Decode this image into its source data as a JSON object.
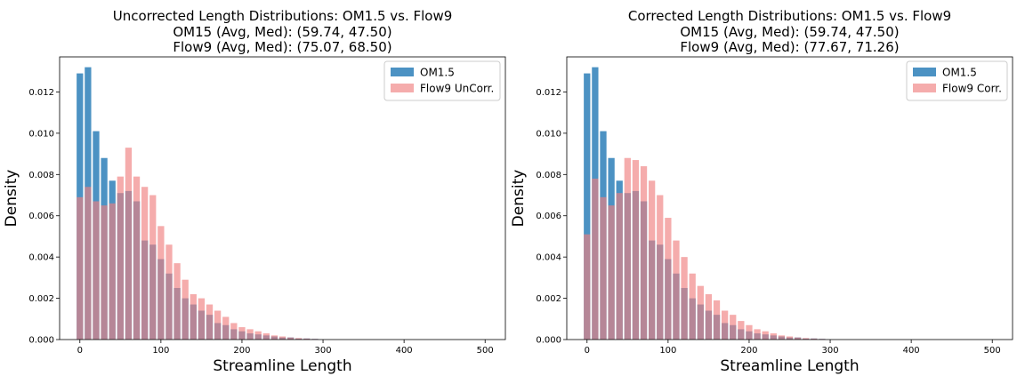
{
  "chart_data": [
    {
      "type": "bar",
      "title": "Uncorrected Length Distributions: OM1.5 vs. Flow9",
      "subtitle_lines": [
        "OM15 (Avg,  Med): (59.74,  47.50)",
        "Flow9 (Avg,  Med): (75.07,  68.50)"
      ],
      "xlabel": "Streamline Length",
      "ylabel": "Density",
      "xlim": [
        -25,
        525
      ],
      "ylim": [
        0,
        0.0137
      ],
      "xticks": [
        0,
        100,
        200,
        300,
        400,
        500
      ],
      "yticks": [
        0.0,
        0.002,
        0.004,
        0.006,
        0.008,
        0.01,
        0.012
      ],
      "ytick_labels": [
        "0.000",
        "0.002",
        "0.004",
        "0.006",
        "0.008",
        "0.010",
        "0.012"
      ],
      "legend_position": "top-right",
      "bin_width": 10,
      "x": [
        0,
        10,
        20,
        30,
        40,
        50,
        60,
        70,
        80,
        90,
        100,
        110,
        120,
        130,
        140,
        150,
        160,
        170,
        180,
        190,
        200,
        210,
        220,
        230,
        240,
        250,
        260,
        270,
        280,
        290
      ],
      "series": [
        {
          "name": "OM1.5",
          "color": "#1f77b4",
          "values": [
            0.0129,
            0.0132,
            0.0101,
            0.0088,
            0.0077,
            0.0071,
            0.0072,
            0.0067,
            0.0048,
            0.0046,
            0.0039,
            0.0032,
            0.0025,
            0.002,
            0.0017,
            0.0014,
            0.0012,
            0.0008,
            0.0007,
            0.0005,
            0.0004,
            0.0003,
            0.00025,
            0.0002,
            0.00015,
            0.0001,
            0.0001,
            5e-05,
            5e-05,
            3e-05
          ]
        },
        {
          "name": "Flow9 UnCorr.",
          "color": "#f08080",
          "values": [
            0.0069,
            0.0074,
            0.0067,
            0.0065,
            0.0066,
            0.0079,
            0.0093,
            0.0079,
            0.0074,
            0.007,
            0.0055,
            0.0046,
            0.0037,
            0.0029,
            0.0022,
            0.002,
            0.0017,
            0.0014,
            0.0011,
            0.0008,
            0.0006,
            0.0005,
            0.0004,
            0.0003,
            0.0002,
            0.00015,
            0.0001,
            7e-05,
            5e-05,
            3e-05
          ]
        }
      ]
    },
    {
      "type": "bar",
      "title": "Corrected Length Distributions: OM1.5 vs. Flow9",
      "subtitle_lines": [
        "OM15 (Avg,  Med): (59.74,  47.50)",
        "Flow9 (Avg,  Med): (77.67,  71.26)"
      ],
      "xlabel": "Streamline Length",
      "ylabel": "Density",
      "xlim": [
        -25,
        525
      ],
      "ylim": [
        0,
        0.0137
      ],
      "xticks": [
        0,
        100,
        200,
        300,
        400,
        500
      ],
      "yticks": [
        0.0,
        0.002,
        0.004,
        0.006,
        0.008,
        0.01,
        0.012
      ],
      "ytick_labels": [
        "0.000",
        "0.002",
        "0.004",
        "0.006",
        "0.008",
        "0.010",
        "0.012"
      ],
      "legend_position": "top-right",
      "bin_width": 10,
      "x": [
        0,
        10,
        20,
        30,
        40,
        50,
        60,
        70,
        80,
        90,
        100,
        110,
        120,
        130,
        140,
        150,
        160,
        170,
        180,
        190,
        200,
        210,
        220,
        230,
        240,
        250,
        260,
        270,
        280,
        290
      ],
      "series": [
        {
          "name": "OM1.5",
          "color": "#1f77b4",
          "values": [
            0.0129,
            0.0132,
            0.0101,
            0.0088,
            0.0077,
            0.0071,
            0.0072,
            0.0067,
            0.0048,
            0.0046,
            0.0039,
            0.0032,
            0.0025,
            0.002,
            0.0017,
            0.0014,
            0.0012,
            0.0008,
            0.0007,
            0.0005,
            0.0004,
            0.0003,
            0.00025,
            0.0002,
            0.00015,
            0.0001,
            0.0001,
            5e-05,
            5e-05,
            3e-05
          ]
        },
        {
          "name": "Flow9 Corr.",
          "color": "#f08080",
          "values": [
            0.0051,
            0.0078,
            0.0069,
            0.0065,
            0.0071,
            0.0088,
            0.0087,
            0.0084,
            0.0077,
            0.007,
            0.0059,
            0.0048,
            0.004,
            0.0032,
            0.0026,
            0.0022,
            0.0019,
            0.0014,
            0.0012,
            0.0009,
            0.0007,
            0.0005,
            0.0004,
            0.0003,
            0.0002,
            0.00015,
            0.0001,
            7e-05,
            5e-05,
            3e-05
          ]
        }
      ]
    }
  ]
}
